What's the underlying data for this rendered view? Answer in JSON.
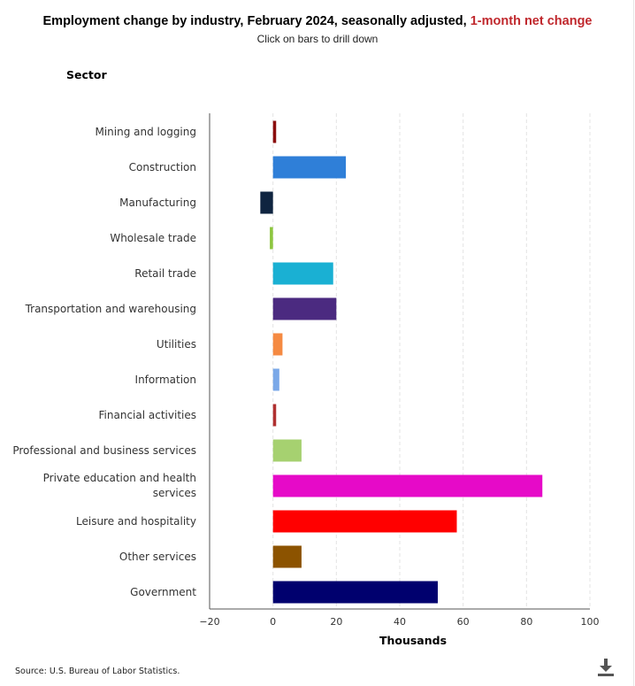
{
  "header": {
    "title_main": "Employment change by industry, February 2024, seasonally adjusted, ",
    "title_accent": "1-month net change",
    "subtitle": "Click on bars to drill down",
    "y_axis_title": "Sector"
  },
  "footer": {
    "source": "Source: U.S. Bureau of Labor Statistics."
  },
  "icons": {
    "download": "download-icon"
  },
  "colors": {
    "accent": "#c0282d"
  },
  "chart_data": {
    "type": "bar",
    "orientation": "horizontal",
    "categories": [
      "Mining and logging",
      "Construction",
      "Manufacturing",
      "Wholesale trade",
      "Retail trade",
      "Transportation and warehousing",
      "Utilities",
      "Information",
      "Financial activities",
      "Professional and business services",
      "Private education and health services",
      "Leisure and hospitality",
      "Other services",
      "Government"
    ],
    "values": [
      1,
      23,
      -4,
      -1,
      19,
      20,
      3,
      2,
      1,
      9,
      85,
      58,
      9,
      52
    ],
    "colors": [
      "#8b0d0d",
      "#2f7fd8",
      "#0f2440",
      "#8dc63f",
      "#1ab0d3",
      "#4b2a80",
      "#f58a42",
      "#7aa8e8",
      "#b03030",
      "#a6d170",
      "#e60ac8",
      "#ff0000",
      "#8c5300",
      "#00006e"
    ],
    "xlabel": "Thousands",
    "ylabel": "Sector",
    "xlim": [
      -20,
      100
    ],
    "xticks": [
      -20,
      0,
      20,
      40,
      60,
      80,
      100
    ],
    "grid": true
  }
}
